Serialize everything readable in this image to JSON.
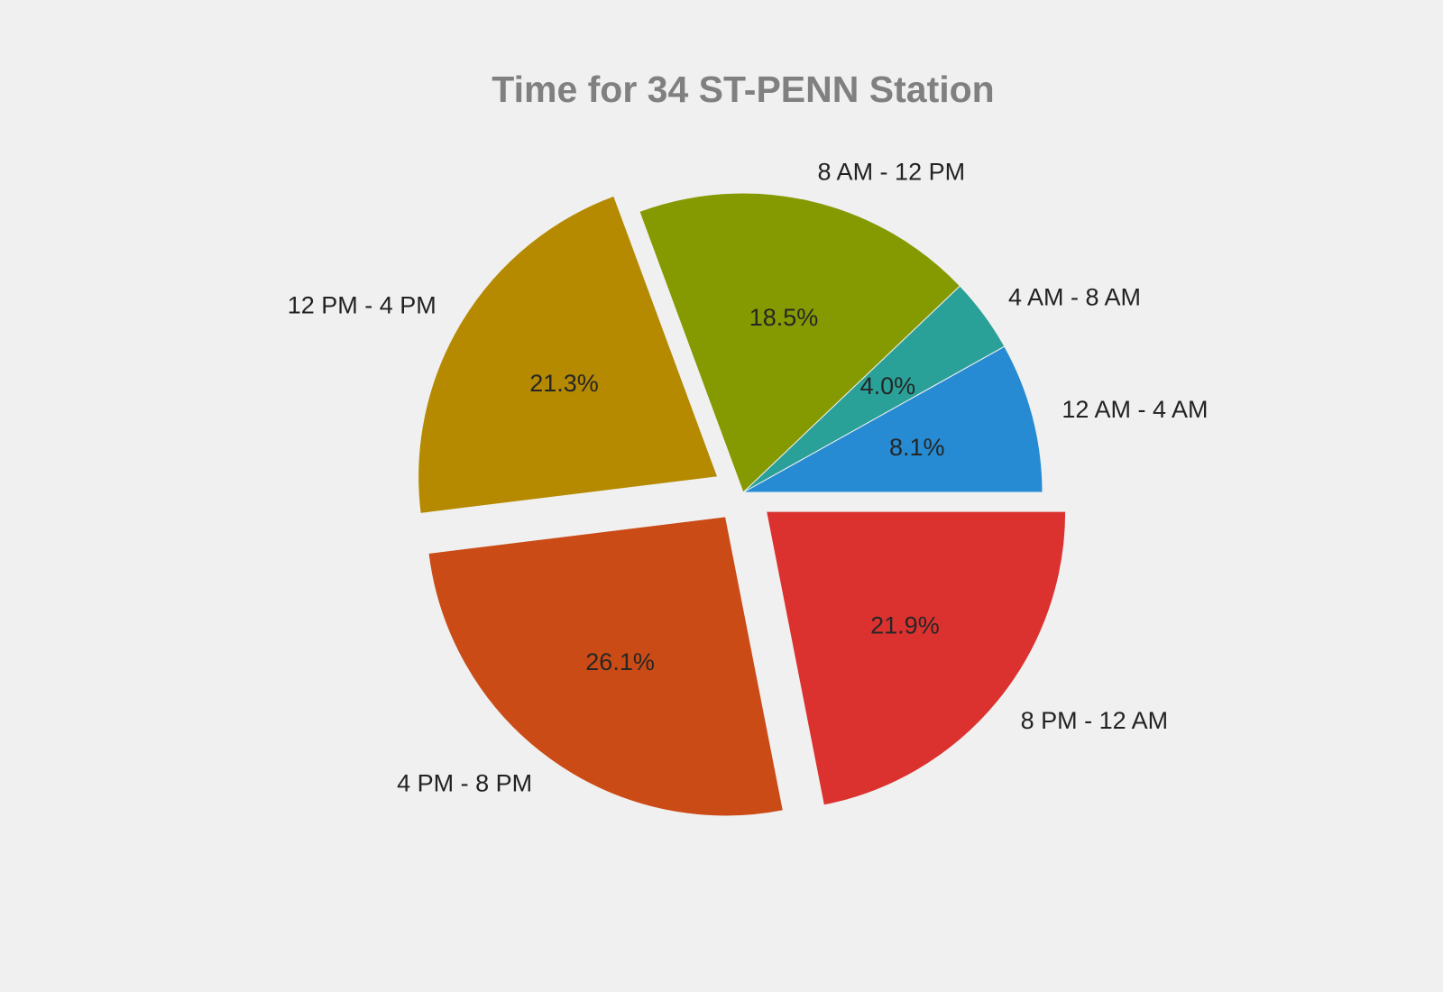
{
  "chart_data": {
    "type": "pie",
    "title": "Time for 34 ST-PENN Station",
    "labels": [
      "12 AM - 4 AM",
      "4 AM - 8 AM",
      "8 AM - 12 PM",
      "12 PM - 4 PM",
      "4 PM - 8 PM",
      "8 PM - 12 AM"
    ],
    "values": [
      8.1,
      4.0,
      18.5,
      21.3,
      26.1,
      21.9
    ],
    "value_labels": [
      "8.1%",
      "4.0%",
      "18.5%",
      "21.3%",
      "26.1%",
      "21.9%"
    ],
    "explode": [
      0,
      0,
      0,
      0.1,
      0.1,
      0.1
    ],
    "colors": [
      "#268bd2",
      "#2aa198",
      "#859900",
      "#b58900",
      "#cb4b16",
      "#dc322f"
    ],
    "start_angle_deg": 0,
    "direction": "counterclockwise"
  }
}
